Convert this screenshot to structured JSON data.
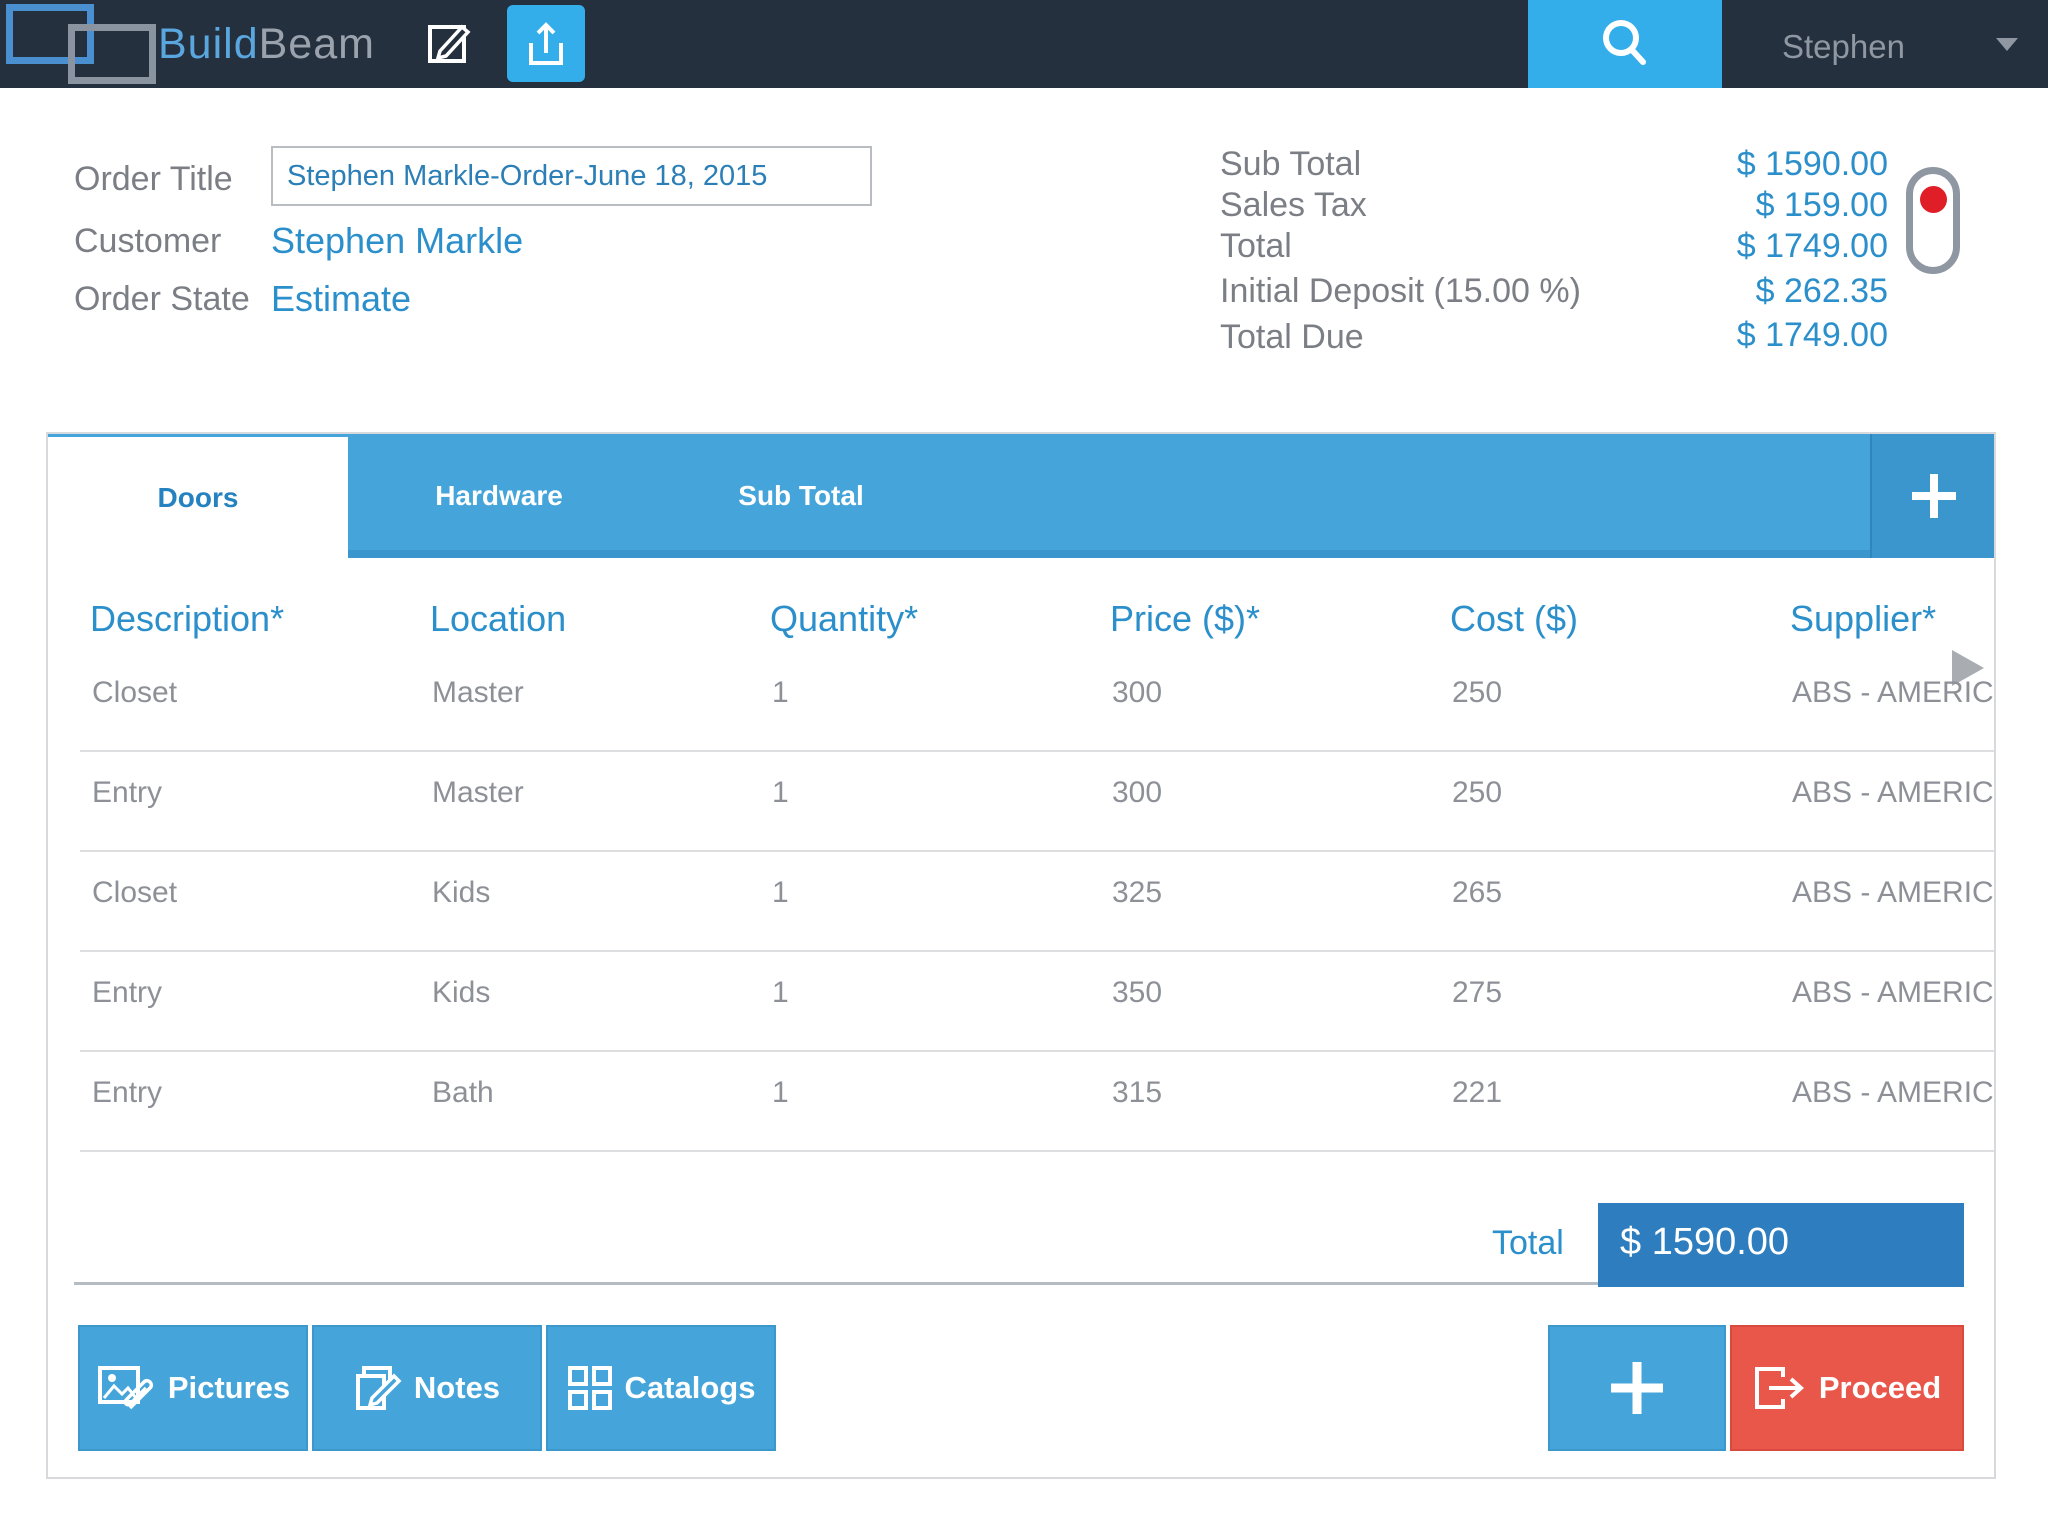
{
  "app": {
    "name_part1": "Build",
    "name_part2": "Beam"
  },
  "topbar": {
    "edit_icon": "edit-icon",
    "share_icon": "share-icon",
    "search_icon": "search-icon",
    "user_name": "Stephen"
  },
  "order": {
    "title_label": "Order Title",
    "title_value": "Stephen Markle-Order-June 18, 2015",
    "customer_label": "Customer",
    "customer_value": "Stephen Markle",
    "state_label": "Order State",
    "state_value": "Estimate"
  },
  "summary": {
    "items": [
      {
        "label": "Sub Total",
        "value": "$ 1590.00"
      },
      {
        "label": "Sales Tax",
        "value": "$ 159.00"
      },
      {
        "label": "Total",
        "value": "$ 1749.00"
      },
      {
        "label": "Initial Deposit (15.00 %)",
        "value": "$ 262.35"
      },
      {
        "label": "Total Due",
        "value": "$ 1749.00"
      }
    ],
    "toggle_on": true
  },
  "tabs": [
    {
      "label": "Doors",
      "active": true
    },
    {
      "label": "Hardware",
      "active": false
    },
    {
      "label": "Sub Total",
      "active": false
    }
  ],
  "table": {
    "headers": [
      "Description*",
      "Location",
      "Quantity*",
      "Price ($)*",
      "Cost ($)",
      "Supplier*"
    ],
    "rows": [
      [
        "Closet",
        "Master",
        "1",
        "300",
        "250",
        "ABS - AMERICA"
      ],
      [
        "Entry",
        "Master",
        "1",
        "300",
        "250",
        "ABS - AMERICA"
      ],
      [
        "Closet",
        "Kids",
        "1",
        "325",
        "265",
        "ABS - AMERICA"
      ],
      [
        "Entry",
        "Kids",
        "1",
        "350",
        "275",
        "ABS - AMERICA"
      ],
      [
        "Entry",
        "Bath",
        "1",
        "315",
        "221",
        "ABS - AMERICA"
      ]
    ],
    "total_label": "Total",
    "total_value": "$ 1590.00"
  },
  "actions": {
    "pictures": "Pictures",
    "notes": "Notes",
    "catalogs": "Catalogs",
    "proceed": "Proceed"
  },
  "colors": {
    "topbar": "#25303f",
    "accent": "#33aeeb",
    "tab_bar": "#45a5da",
    "link": "#2b8fcb",
    "total_box": "#2e7ebf",
    "proceed": "#e9574a"
  }
}
